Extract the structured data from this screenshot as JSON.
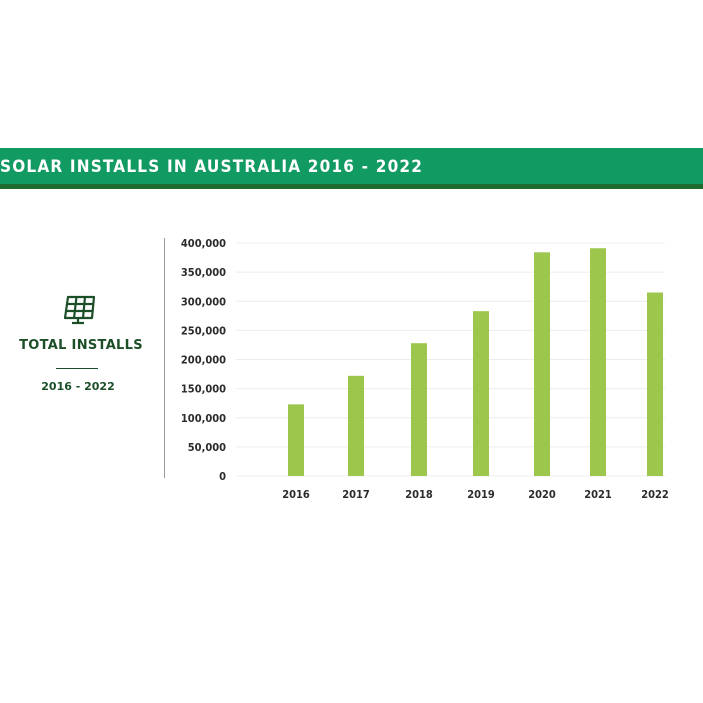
{
  "banner": {
    "title": "SOLAR INSTALLS IN AUSTRALIA 2016 - 2022"
  },
  "side_panel": {
    "icon": "solar-panel-icon",
    "title": "TOTAL INSTALLS",
    "years": "2016 - 2022"
  },
  "colors": {
    "banner": "#129a63",
    "banner_shadow": "#1f6b2d",
    "bar": "#9cc64c",
    "dark_green_text": "#1c4f28"
  },
  "chart_data": {
    "type": "bar",
    "title": "",
    "xlabel": "",
    "ylabel": "",
    "categories": [
      "2016",
      "2017",
      "2018",
      "2019",
      "2020",
      "2021",
      "2022"
    ],
    "values": [
      123000,
      172000,
      228000,
      283000,
      384000,
      391000,
      315000
    ],
    "ylim": [
      0,
      400000
    ],
    "y_ticks": [
      0,
      50000,
      100000,
      150000,
      200000,
      250000,
      300000,
      350000,
      400000
    ],
    "y_tick_labels": [
      "0",
      "50,000",
      "100,000",
      "150,000",
      "200,000",
      "250,000",
      "300,000",
      "350,000",
      "400,000"
    ],
    "grid": true,
    "legend": "none"
  }
}
